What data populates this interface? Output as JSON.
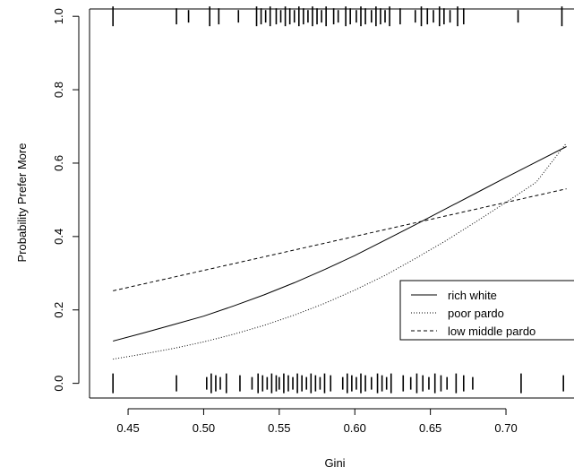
{
  "chart_data": {
    "type": "line",
    "title": "",
    "xlabel": "Gini",
    "ylabel": "Probability Prefer More",
    "xlim": [
      0.4245,
      0.745
    ],
    "ylim": [
      -0.04,
      1.02
    ],
    "x_ticks": [
      0.45,
      0.5,
      0.55,
      0.6,
      0.65,
      0.7
    ],
    "y_ticks": [
      0.0,
      0.2,
      0.4,
      0.6,
      0.8,
      1.0
    ],
    "x_tick_labels": [
      "0.45",
      "0.50",
      "0.55",
      "0.60",
      "0.65",
      "0.70"
    ],
    "y_tick_labels": [
      "0.0",
      "0.2",
      "0.4",
      "0.6",
      "0.8",
      "1.0"
    ],
    "grid": false,
    "legend_position": "right",
    "series": [
      {
        "name": "rich white",
        "dash": "solid",
        "x": [
          0.44,
          0.46,
          0.48,
          0.5,
          0.52,
          0.54,
          0.56,
          0.58,
          0.6,
          0.62,
          0.64,
          0.66,
          0.68,
          0.7,
          0.72,
          0.74
        ],
        "values": [
          0.115,
          0.137,
          0.16,
          0.183,
          0.211,
          0.241,
          0.274,
          0.31,
          0.348,
          0.39,
          0.432,
          0.475,
          0.518,
          0.561,
          0.603,
          0.645
        ]
      },
      {
        "name": "poor pardo",
        "dash": "dotted",
        "x": [
          0.44,
          0.46,
          0.48,
          0.5,
          0.52,
          0.54,
          0.56,
          0.58,
          0.6,
          0.62,
          0.64,
          0.66,
          0.68,
          0.7,
          0.72,
          0.74
        ],
        "values": [
          0.066,
          0.08,
          0.095,
          0.113,
          0.134,
          0.158,
          0.186,
          0.218,
          0.254,
          0.294,
          0.34,
          0.388,
          0.44,
          0.493,
          0.548,
          0.655
        ]
      },
      {
        "name": "low middle pardo",
        "dash": "dashed",
        "x": [
          0.44,
          0.74
        ],
        "values": [
          0.252,
          0.53
        ]
      }
    ],
    "rug_top": {
      "y": 1.0,
      "x": [
        0.44,
        0.482,
        0.49,
        0.504,
        0.51,
        0.523,
        0.535,
        0.538,
        0.541,
        0.544,
        0.548,
        0.551,
        0.554,
        0.557,
        0.56,
        0.563,
        0.566,
        0.569,
        0.572,
        0.575,
        0.578,
        0.581,
        0.586,
        0.589,
        0.594,
        0.597,
        0.601,
        0.604,
        0.607,
        0.611,
        0.614,
        0.617,
        0.62,
        0.623,
        0.63,
        0.64,
        0.644,
        0.648,
        0.652,
        0.656,
        0.659,
        0.663,
        0.668,
        0.672,
        0.708,
        0.737
      ]
    },
    "rug_bottom": {
      "y": 0.0,
      "x": [
        0.44,
        0.482,
        0.502,
        0.505,
        0.508,
        0.511,
        0.515,
        0.524,
        0.532,
        0.536,
        0.539,
        0.542,
        0.545,
        0.548,
        0.55,
        0.553,
        0.556,
        0.559,
        0.562,
        0.565,
        0.568,
        0.571,
        0.574,
        0.577,
        0.58,
        0.584,
        0.592,
        0.595,
        0.598,
        0.601,
        0.604,
        0.607,
        0.611,
        0.615,
        0.618,
        0.621,
        0.624,
        0.632,
        0.637,
        0.641,
        0.645,
        0.649,
        0.653,
        0.657,
        0.661,
        0.667,
        0.672,
        0.678,
        0.71,
        0.738
      ]
    }
  }
}
